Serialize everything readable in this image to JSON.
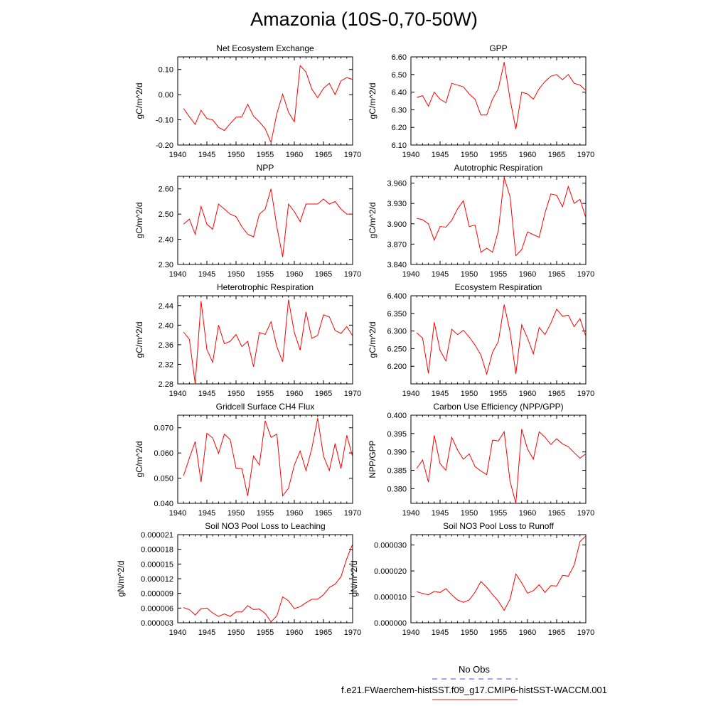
{
  "title": "Amazonia (10S-0,70-50W)",
  "legend": {
    "entries": [
      {
        "label": "No Obs",
        "color": "#4b4bd6",
        "style": "dashed"
      },
      {
        "label": "f.e21.FWaerchem-histSST.f09_g17.CMIP6-histSST-WACCM.001",
        "color": "#e02020",
        "style": "solid"
      }
    ]
  },
  "colors": {
    "series": "#ff0000",
    "axis": "#000000"
  },
  "chart_data": [
    {
      "type": "line",
      "title": "Net Ecosystem Exchange",
      "xlabel": "",
      "ylabel": "gC/m^2/d",
      "xlim": [
        1940,
        1970
      ],
      "ylim": [
        -0.2,
        0.15
      ],
      "xticks": [
        "1940",
        "1945",
        "1950",
        "1955",
        "1960",
        "1965",
        "1970"
      ],
      "yticks": [
        "0.10",
        "0.00",
        "-0.10",
        "-0.20"
      ],
      "x": [
        1941,
        1942,
        1943,
        1944,
        1945,
        1946,
        1947,
        1948,
        1949,
        1950,
        1951,
        1952,
        1953,
        1954,
        1955,
        1956,
        1957,
        1958,
        1959,
        1960,
        1961,
        1962,
        1963,
        1964,
        1965,
        1966,
        1967,
        1968,
        1969,
        1970
      ],
      "series": [
        {
          "values": [
            -0.055,
            -0.088,
            -0.118,
            -0.062,
            -0.095,
            -0.1,
            -0.13,
            -0.142,
            -0.115,
            -0.09,
            -0.088,
            -0.038,
            -0.085,
            -0.108,
            -0.135,
            -0.19,
            -0.075,
            0.002,
            -0.07,
            -0.108,
            0.115,
            0.09,
            0.022,
            -0.012,
            0.025,
            0.045,
            0.0,
            0.055,
            0.068,
            0.06
          ]
        }
      ]
    },
    {
      "type": "line",
      "title": "GPP",
      "xlabel": "",
      "ylabel": "gC/m^2/d",
      "xlim": [
        1940,
        1970
      ],
      "ylim": [
        6.1,
        6.6
      ],
      "xticks": [
        "1940",
        "1945",
        "1950",
        "1955",
        "1960",
        "1965",
        "1970"
      ],
      "yticks": [
        "6.60",
        "6.50",
        "6.40",
        "6.30",
        "6.20",
        "6.10"
      ],
      "x": [
        1941,
        1942,
        1943,
        1944,
        1945,
        1946,
        1947,
        1948,
        1949,
        1950,
        1951,
        1952,
        1953,
        1954,
        1955,
        1956,
        1957,
        1958,
        1959,
        1960,
        1961,
        1962,
        1963,
        1964,
        1965,
        1966,
        1967,
        1968,
        1969,
        1970
      ],
      "series": [
        {
          "values": [
            6.37,
            6.38,
            6.32,
            6.4,
            6.36,
            6.34,
            6.45,
            6.44,
            6.43,
            6.39,
            6.36,
            6.27,
            6.27,
            6.36,
            6.42,
            6.57,
            6.36,
            6.19,
            6.4,
            6.39,
            6.36,
            6.42,
            6.46,
            6.49,
            6.5,
            6.47,
            6.5,
            6.45,
            6.44,
            6.41
          ]
        }
      ]
    },
    {
      "type": "line",
      "title": "NPP",
      "xlabel": "",
      "ylabel": "gC/m^2/d",
      "xlim": [
        1940,
        1970
      ],
      "ylim": [
        2.3,
        2.65
      ],
      "xticks": [
        "1940",
        "1945",
        "1950",
        "1955",
        "1960",
        "1965",
        "1970"
      ],
      "yticks": [
        "2.60",
        "2.50",
        "2.40",
        "2.30"
      ],
      "x": [
        1941,
        1942,
        1943,
        1944,
        1945,
        1946,
        1947,
        1948,
        1949,
        1950,
        1951,
        1952,
        1953,
        1954,
        1955,
        1956,
        1957,
        1958,
        1959,
        1960,
        1961,
        1962,
        1963,
        1964,
        1965,
        1966,
        1967,
        1968,
        1969,
        1970
      ],
      "series": [
        {
          "values": [
            2.46,
            2.48,
            2.42,
            2.53,
            2.46,
            2.44,
            2.54,
            2.52,
            2.5,
            2.49,
            2.45,
            2.42,
            2.41,
            2.5,
            2.52,
            2.6,
            2.45,
            2.33,
            2.54,
            2.51,
            2.47,
            2.54,
            2.54,
            2.54,
            2.56,
            2.54,
            2.55,
            2.52,
            2.5,
            2.5
          ]
        }
      ]
    },
    {
      "type": "line",
      "title": "Autotrophic Respiration",
      "xlabel": "",
      "ylabel": "gC/m^2/d",
      "xlim": [
        1940,
        1970
      ],
      "ylim": [
        3.84,
        3.97
      ],
      "xticks": [
        "1940",
        "1945",
        "1950",
        "1955",
        "1960",
        "1965",
        "1970"
      ],
      "yticks": [
        "3.960",
        "3.930",
        "3.900",
        "3.870",
        "3.840"
      ],
      "x": [
        1941,
        1942,
        1943,
        1944,
        1945,
        1946,
        1947,
        1948,
        1949,
        1950,
        1951,
        1952,
        1953,
        1954,
        1955,
        1956,
        1957,
        1958,
        1959,
        1960,
        1961,
        1962,
        1963,
        1964,
        1965,
        1966,
        1967,
        1968,
        1969,
        1970
      ],
      "series": [
        {
          "values": [
            3.908,
            3.906,
            3.9,
            3.876,
            3.896,
            3.895,
            3.905,
            3.922,
            3.934,
            3.896,
            3.898,
            3.858,
            3.864,
            3.858,
            3.89,
            3.968,
            3.94,
            3.853,
            3.862,
            3.888,
            3.884,
            3.88,
            3.916,
            3.944,
            3.942,
            3.925,
            3.955,
            3.93,
            3.936,
            3.909
          ]
        }
      ]
    },
    {
      "type": "line",
      "title": "Heterotrophic Respiration",
      "xlabel": "",
      "ylabel": "gC/m^2/d",
      "xlim": [
        1940,
        1970
      ],
      "ylim": [
        2.28,
        2.46
      ],
      "xticks": [
        "1940",
        "1945",
        "1950",
        "1955",
        "1960",
        "1965",
        "1970"
      ],
      "yticks": [
        "2.44",
        "2.40",
        "2.36",
        "2.32",
        "2.28"
      ],
      "x": [
        1941,
        1942,
        1943,
        1944,
        1945,
        1946,
        1947,
        1948,
        1949,
        1950,
        1951,
        1952,
        1953,
        1954,
        1955,
        1956,
        1957,
        1958,
        1959,
        1960,
        1961,
        1962,
        1963,
        1964,
        1965,
        1966,
        1967,
        1968,
        1969,
        1970
      ],
      "series": [
        {
          "values": [
            2.386,
            2.371,
            2.28,
            2.449,
            2.35,
            2.324,
            2.4,
            2.362,
            2.367,
            2.381,
            2.356,
            2.367,
            2.315,
            2.385,
            2.381,
            2.407,
            2.356,
            2.325,
            2.452,
            2.385,
            2.349,
            2.427,
            2.373,
            2.379,
            2.421,
            2.417,
            2.389,
            2.383,
            2.397,
            2.378
          ]
        }
      ]
    },
    {
      "type": "line",
      "title": "Ecosystem Respiration",
      "xlabel": "",
      "ylabel": "gC/m^2/d",
      "xlim": [
        1940,
        1970
      ],
      "ylim": [
        6.15,
        6.4
      ],
      "xticks": [
        "1940",
        "1945",
        "1950",
        "1955",
        "1960",
        "1965",
        "1970"
      ],
      "yticks": [
        "6.400",
        "6.350",
        "6.300",
        "6.250",
        "6.200"
      ],
      "x": [
        1941,
        1942,
        1943,
        1944,
        1945,
        1946,
        1947,
        1948,
        1949,
        1950,
        1951,
        1952,
        1953,
        1954,
        1955,
        1956,
        1957,
        1958,
        1959,
        1960,
        1961,
        1962,
        1963,
        1964,
        1965,
        1966,
        1967,
        1968,
        1969,
        1970
      ],
      "series": [
        {
          "values": [
            6.295,
            6.28,
            6.18,
            6.325,
            6.245,
            6.215,
            6.305,
            6.29,
            6.302,
            6.283,
            6.26,
            6.232,
            6.178,
            6.24,
            6.27,
            6.375,
            6.298,
            6.178,
            6.318,
            6.28,
            6.235,
            6.31,
            6.29,
            6.322,
            6.362,
            6.342,
            6.345,
            6.312,
            6.335,
            6.285
          ]
        }
      ]
    },
    {
      "type": "line",
      "title": "Gridcell Surface CH4 Flux",
      "xlabel": "",
      "ylabel": "gC/m^2/d",
      "xlim": [
        1940,
        1970
      ],
      "ylim": [
        0.04,
        0.075
      ],
      "xticks": [
        "1940",
        "1945",
        "1950",
        "1955",
        "1960",
        "1965",
        "1970"
      ],
      "yticks": [
        "0.070",
        "0.060",
        "0.050",
        "0.040"
      ],
      "x": [
        1941,
        1942,
        1943,
        1944,
        1945,
        1946,
        1947,
        1948,
        1949,
        1950,
        1951,
        1952,
        1953,
        1954,
        1955,
        1956,
        1957,
        1958,
        1959,
        1960,
        1961,
        1962,
        1963,
        1964,
        1965,
        1966,
        1967,
        1968,
        1969,
        1970
      ],
      "series": [
        {
          "values": [
            0.051,
            0.058,
            0.0645,
            0.0485,
            0.0678,
            0.066,
            0.0598,
            0.0675,
            0.0653,
            0.054,
            0.0538,
            0.043,
            0.0588,
            0.0552,
            0.0728,
            0.0662,
            0.0675,
            0.043,
            0.046,
            0.0552,
            0.0608,
            0.053,
            0.0618,
            0.0738,
            0.0588,
            0.053,
            0.0638,
            0.0538,
            0.067,
            0.0585
          ]
        }
      ]
    },
    {
      "type": "line",
      "title": "Carbon Use Efficiency (NPP/GPP)",
      "xlabel": "",
      "ylabel": "NPP/GPP",
      "xlim": [
        1940,
        1970
      ],
      "ylim": [
        0.376,
        0.4
      ],
      "xticks": [
        "1940",
        "1945",
        "1950",
        "1955",
        "1960",
        "1965",
        "1970"
      ],
      "yticks": [
        "0.400",
        "0.395",
        "0.390",
        "0.385",
        "0.380"
      ],
      "x": [
        1941,
        1942,
        1943,
        1944,
        1945,
        1946,
        1947,
        1948,
        1949,
        1950,
        1951,
        1952,
        1953,
        1954,
        1955,
        1956,
        1957,
        1958,
        1959,
        1960,
        1961,
        1962,
        1963,
        1964,
        1965,
        1966,
        1967,
        1968,
        1969,
        1970
      ],
      "series": [
        {
          "values": [
            0.3855,
            0.3878,
            0.3818,
            0.3945,
            0.3868,
            0.385,
            0.394,
            0.3905,
            0.388,
            0.3895,
            0.386,
            0.3848,
            0.3838,
            0.3932,
            0.393,
            0.3955,
            0.382,
            0.376,
            0.3962,
            0.3908,
            0.388,
            0.3955,
            0.394,
            0.392,
            0.3936,
            0.3922,
            0.3914,
            0.3898,
            0.3883,
            0.3895
          ]
        }
      ]
    },
    {
      "type": "line",
      "title": "Soil NO3 Pool Loss to Leaching",
      "xlabel": "",
      "ylabel": "gN/m^2/d",
      "xlim": [
        1940,
        1970
      ],
      "ylim": [
        3e-06,
        2.1e-05
      ],
      "xticks": [
        "1940",
        "1945",
        "1950",
        "1955",
        "1960",
        "1965",
        "1970"
      ],
      "yticks": [
        "0.000021",
        "0.000018",
        "0.000015",
        "0.000012",
        "0.000009",
        "0.000006",
        "0.000003"
      ],
      "x": [
        1941,
        1942,
        1943,
        1944,
        1945,
        1946,
        1947,
        1948,
        1949,
        1950,
        1951,
        1952,
        1953,
        1954,
        1955,
        1956,
        1957,
        1958,
        1959,
        1960,
        1961,
        1962,
        1963,
        1964,
        1965,
        1966,
        1967,
        1968,
        1969,
        1970
      ],
      "series": [
        {
          "values": [
            6.1e-06,
            5.7e-06,
            4.6e-06,
            5.9e-06,
            6e-06,
            5e-06,
            4.3e-06,
            4.8e-06,
            4.3e-06,
            5.2e-06,
            5.2e-06,
            6.5e-06,
            5.7e-06,
            5.8e-06,
            4.9e-06,
            3.2e-06,
            4.4e-06,
            8.3e-06,
            7.5e-06,
            5.9e-06,
            6.3e-06,
            7.1e-06,
            7.8e-06,
            7.8e-06,
            8.7e-06,
            1.02e-05,
            1.09e-05,
            1.24e-05,
            1.61e-05,
            1.91e-05
          ]
        }
      ]
    },
    {
      "type": "line",
      "title": "Soil NO3 Pool Loss to Runoff",
      "xlabel": "",
      "ylabel": "gN/m^2/d",
      "xlim": [
        1940,
        1970
      ],
      "ylim": [
        0.0,
        3.4e-05
      ],
      "xticks": [
        "1940",
        "1945",
        "1950",
        "1955",
        "1960",
        "1965",
        "1970"
      ],
      "yticks": [
        "0.000030",
        "0.000020",
        "0.000010",
        "0.000000"
      ],
      "x": [
        1941,
        1942,
        1943,
        1944,
        1945,
        1946,
        1947,
        1948,
        1949,
        1950,
        1951,
        1952,
        1953,
        1954,
        1955,
        1956,
        1957,
        1958,
        1959,
        1960,
        1961,
        1962,
        1963,
        1964,
        1965,
        1966,
        1967,
        1968,
        1969,
        1970
      ],
      "series": [
        {
          "values": [
            1.2e-05,
            1.13e-05,
            1.08e-05,
            1.21e-05,
            1.17e-05,
            1.32e-05,
            1.08e-05,
            8.8e-06,
            7.9e-06,
            8.8e-06,
            1.18e-05,
            1.59e-05,
            1.37e-05,
            1.09e-05,
            8.3e-06,
            4.8e-06,
            9.1e-06,
            1.88e-05,
            1.54e-05,
            1.14e-05,
            1.24e-05,
            1.47e-05,
            1.17e-05,
            1.43e-05,
            1.42e-05,
            1.83e-05,
            1.8e-05,
            2.22e-05,
            3.13e-05,
            3.35e-05
          ]
        }
      ]
    }
  ]
}
